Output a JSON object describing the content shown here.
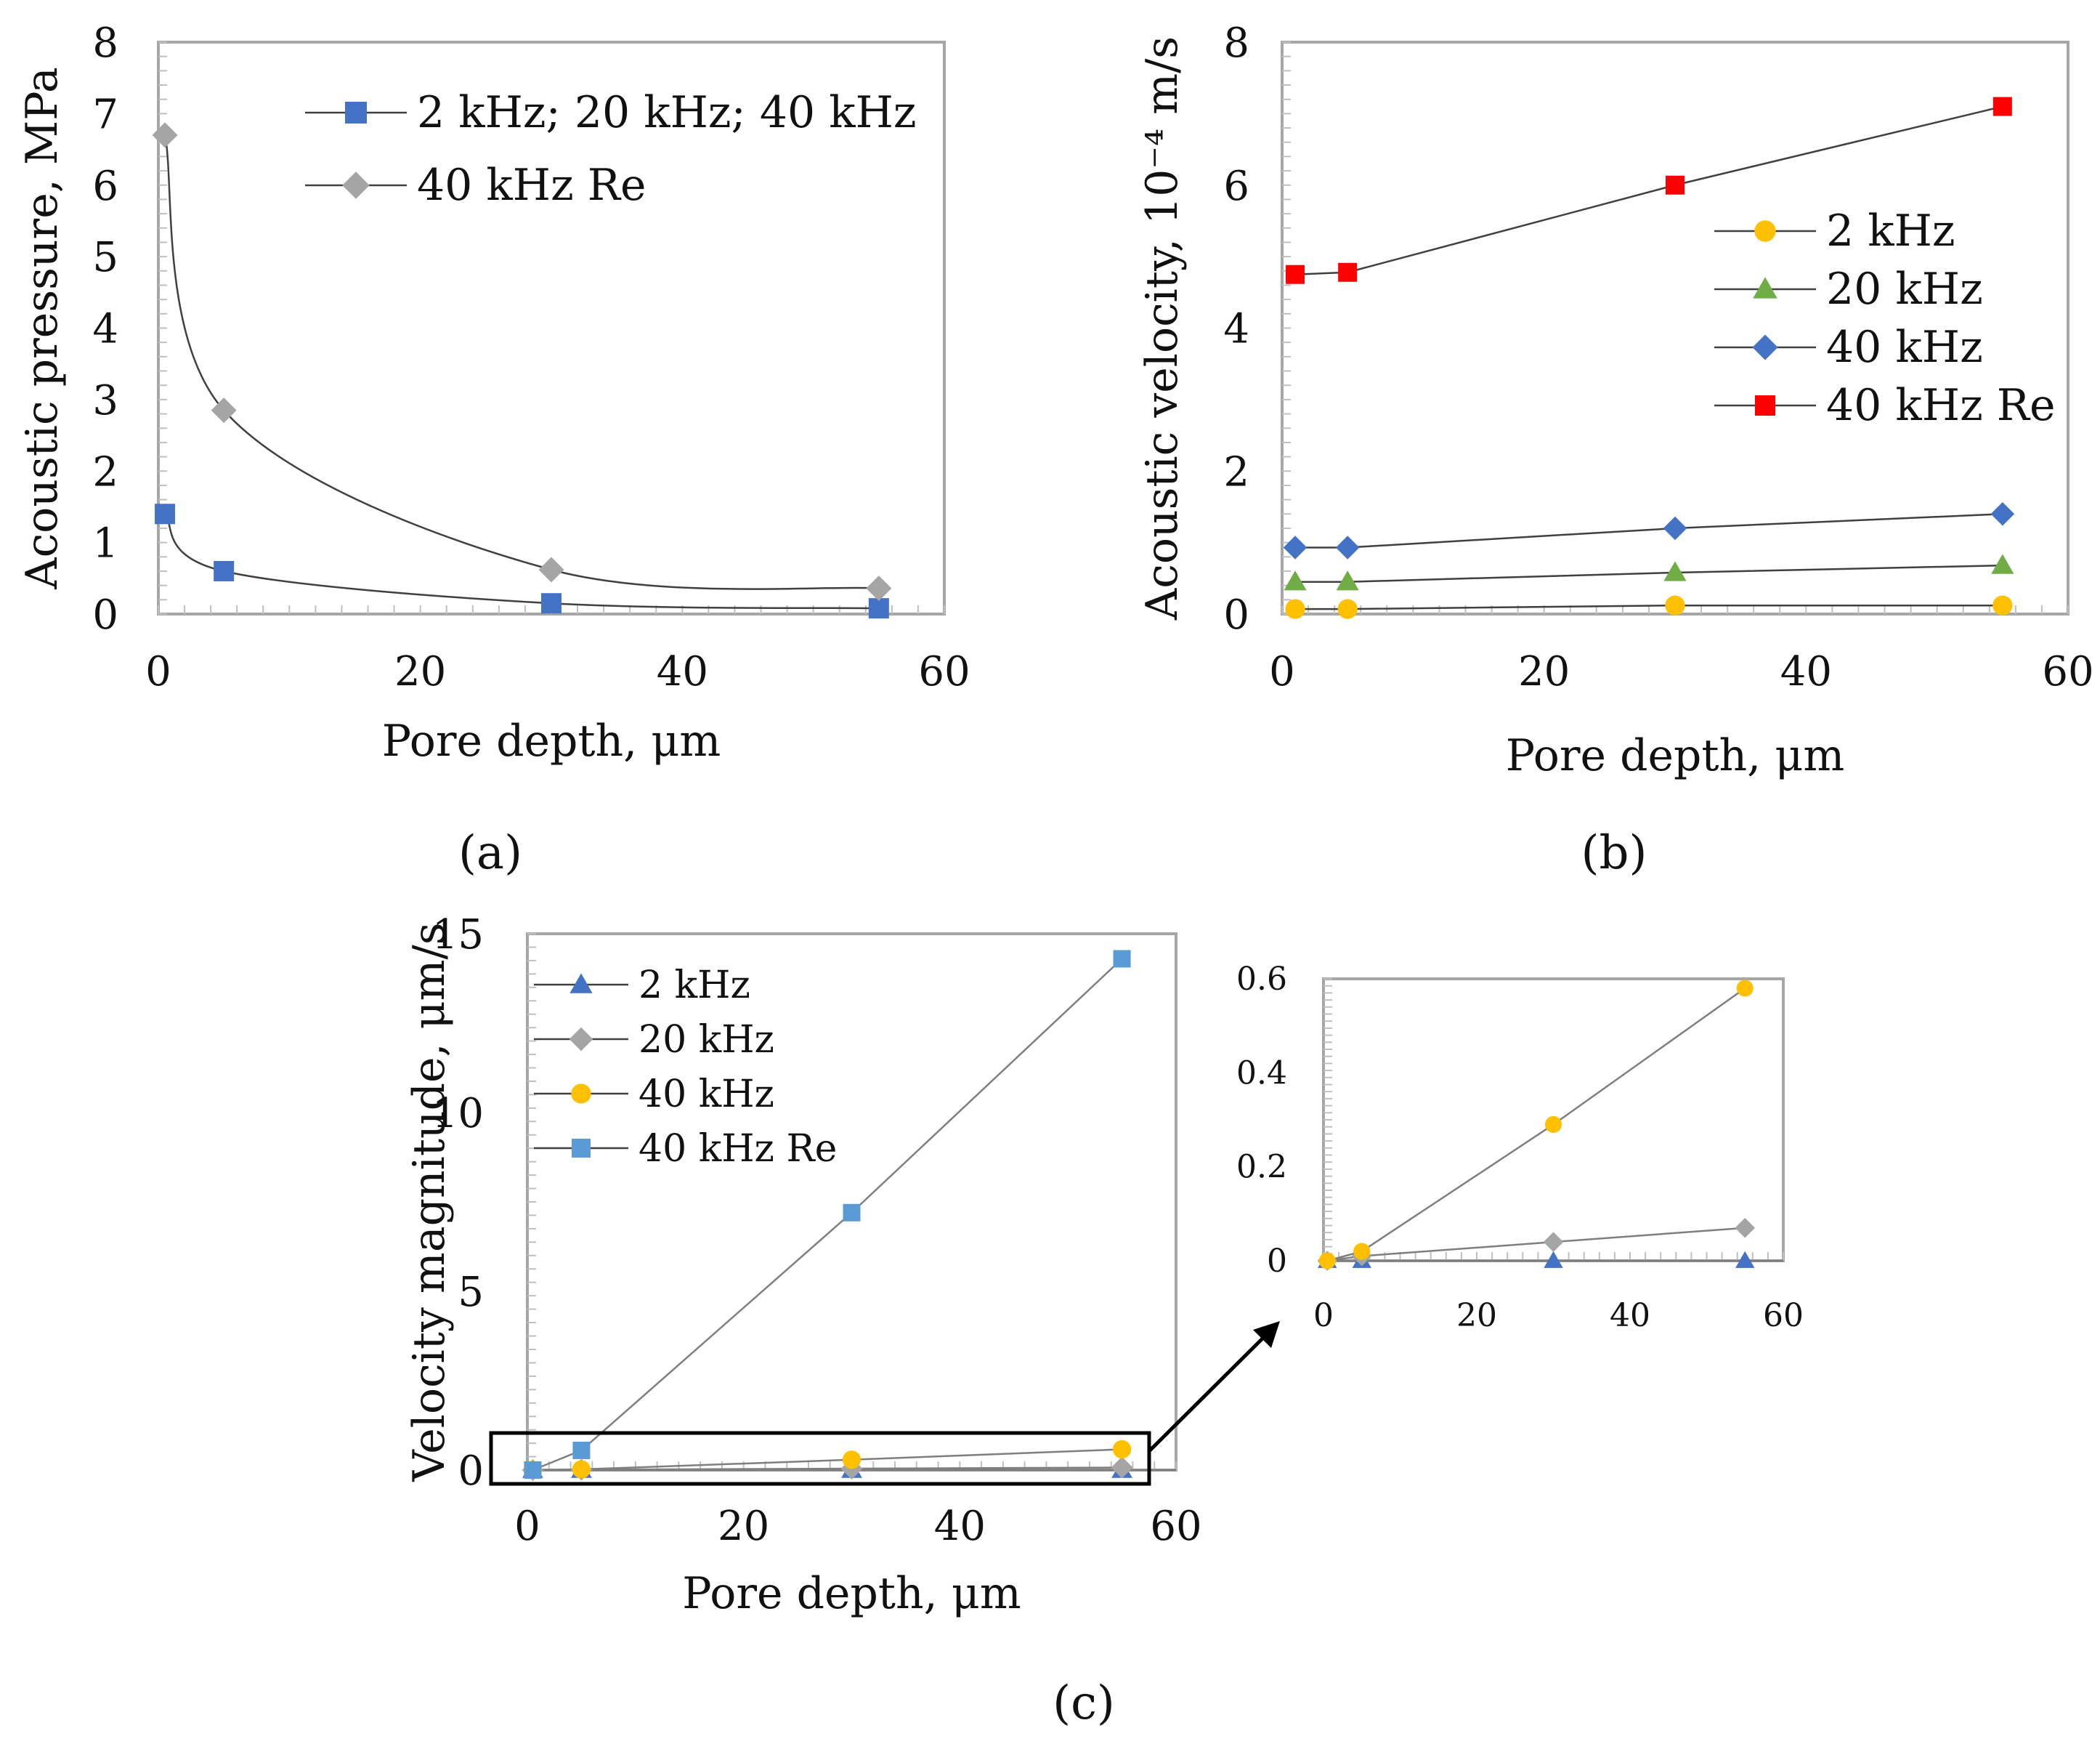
{
  "chart_data": [
    {
      "panel": "a",
      "type": "line",
      "title": "",
      "xlabel": "Pore depth, μm",
      "ylabel": "Acoustic pressure, MPa",
      "xlim": [
        0,
        60
      ],
      "ylim": [
        0,
        8
      ],
      "xticks": [
        0,
        20,
        40,
        60
      ],
      "yticks": [
        0,
        1,
        2,
        3,
        4,
        5,
        6,
        7,
        8
      ],
      "legend_position": "top-right",
      "series": [
        {
          "name": "2 kHz; 20 kHz; 40 kHz",
          "marker": "square",
          "color": "#4472C4",
          "x": [
            0.5,
            5,
            30,
            55
          ],
          "y": [
            1.4,
            0.6,
            0.15,
            0.08
          ]
        },
        {
          "name": "40 kHz Re",
          "marker": "diamond",
          "color": "#A5A5A5",
          "x": [
            0.5,
            5,
            30,
            55
          ],
          "y": [
            6.7,
            2.85,
            0.62,
            0.36
          ]
        }
      ]
    },
    {
      "panel": "b",
      "type": "line",
      "title": "",
      "xlabel": "Pore depth, μm",
      "ylabel": "Acoustic velocity, 10⁻⁴ m/s",
      "xlim": [
        0,
        60
      ],
      "ylim": [
        0,
        8
      ],
      "xticks": [
        0,
        20,
        40,
        60
      ],
      "yticks": [
        0,
        2,
        4,
        6,
        8
      ],
      "legend_position": "right",
      "series": [
        {
          "name": "2 kHz",
          "marker": "circle",
          "color": "#FFC000",
          "x": [
            1,
            5,
            30,
            55
          ],
          "y": [
            0.07,
            0.07,
            0.12,
            0.12
          ]
        },
        {
          "name": "20 kHz",
          "marker": "triangle",
          "color": "#70AD47",
          "x": [
            1,
            5,
            30,
            55
          ],
          "y": [
            0.45,
            0.45,
            0.58,
            0.68
          ]
        },
        {
          "name": "40 kHz",
          "marker": "diamond",
          "color": "#4472C4",
          "x": [
            1,
            5,
            30,
            55
          ],
          "y": [
            0.93,
            0.93,
            1.2,
            1.4
          ]
        },
        {
          "name": "40 kHz Re",
          "marker": "square",
          "color": "#FF0000",
          "x": [
            1,
            5,
            30,
            55
          ],
          "y": [
            4.75,
            4.78,
            6.0,
            7.1
          ]
        }
      ]
    },
    {
      "panel": "c",
      "type": "line",
      "title": "",
      "xlabel": "Pore depth, μm",
      "ylabel": "Velocity magnitude, μm/s",
      "xlim": [
        0,
        60
      ],
      "ylim": [
        0,
        15
      ],
      "xticks": [
        0,
        20,
        40,
        60
      ],
      "yticks": [
        0,
        5,
        10,
        15
      ],
      "legend_position": "top-left",
      "series": [
        {
          "name": "2 kHz",
          "marker": "triangle",
          "color": "#4472C4",
          "x": [
            0.5,
            5,
            30,
            55
          ],
          "y": [
            0,
            0,
            0,
            0
          ]
        },
        {
          "name": "20 kHz",
          "marker": "diamond",
          "color": "#A5A5A5",
          "x": [
            0.5,
            5,
            30,
            55
          ],
          "y": [
            0,
            0.01,
            0.04,
            0.07
          ]
        },
        {
          "name": "40 kHz",
          "marker": "circle",
          "color": "#FFC000",
          "x": [
            0.5,
            5,
            30,
            55
          ],
          "y": [
            0,
            0.02,
            0.29,
            0.58
          ]
        },
        {
          "name": "40 kHz Re",
          "marker": "square",
          "color": "#5B9BD5",
          "x": [
            0.5,
            5,
            30,
            55
          ],
          "y": [
            0,
            0.55,
            7.2,
            14.3
          ]
        }
      ]
    },
    {
      "panel": "c-inset",
      "type": "line",
      "title": "",
      "xlabel": "",
      "ylabel": "",
      "xlim": [
        0,
        60
      ],
      "ylim": [
        0,
        0.6
      ],
      "xticks": [
        0,
        20,
        40,
        60
      ],
      "yticks": [
        0,
        0.2,
        0.4,
        0.6
      ],
      "series": [
        {
          "name": "2 kHz",
          "marker": "triangle",
          "color": "#4472C4",
          "x": [
            0.5,
            5,
            30,
            55
          ],
          "y": [
            0,
            0,
            0,
            0
          ]
        },
        {
          "name": "20 kHz",
          "marker": "diamond",
          "color": "#A5A5A5",
          "x": [
            0.5,
            5,
            30,
            55
          ],
          "y": [
            0,
            0.01,
            0.04,
            0.07
          ]
        },
        {
          "name": "40 kHz",
          "marker": "circle",
          "color": "#FFC000",
          "x": [
            0.5,
            5,
            30,
            55
          ],
          "y": [
            0,
            0.02,
            0.29,
            0.58
          ]
        }
      ]
    }
  ],
  "labels": {
    "a": "(a)",
    "b": "(b)",
    "c": "(c)"
  }
}
